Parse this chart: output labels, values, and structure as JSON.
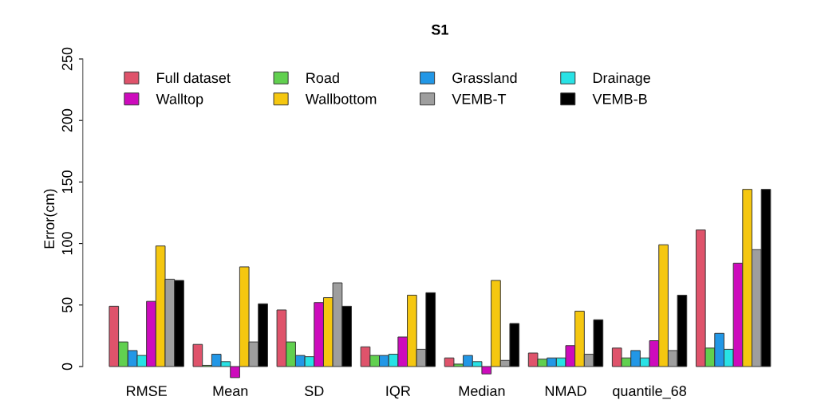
{
  "chart_data": {
    "type": "bar",
    "title": "S1",
    "ylabel": "Error(cm)",
    "categories": [
      "RMSE",
      "Mean",
      "SD",
      "IQR",
      "Median",
      "NMAD",
      "quantile_68",
      null
    ],
    "ylim": [
      -10,
      250
    ],
    "yticks": [
      0,
      50,
      100,
      150,
      200,
      250
    ],
    "grid": false,
    "legend": "top left",
    "series": [
      {
        "name": "Full dataset",
        "color": "#df536b",
        "values": [
          49,
          18,
          46,
          16,
          7,
          11,
          15,
          111
        ]
      },
      {
        "name": "Road",
        "color": "#61d04f",
        "values": [
          20,
          1,
          20,
          9,
          2,
          6,
          7,
          15
        ]
      },
      {
        "name": "Grassland",
        "color": "#2297e6",
        "values": [
          13,
          10,
          9,
          9,
          9,
          7,
          13,
          27
        ]
      },
      {
        "name": "Drainage",
        "color": "#28e2e5",
        "values": [
          9,
          4,
          8,
          10,
          4,
          7,
          7,
          14
        ]
      },
      {
        "name": "Walltop",
        "color": "#cd0bbc",
        "values": [
          53,
          -9,
          52,
          24,
          -6,
          17,
          21,
          84
        ]
      },
      {
        "name": "Wallbottom",
        "color": "#f5c710",
        "values": [
          98,
          81,
          56,
          58,
          70,
          45,
          99,
          144
        ]
      },
      {
        "name": "VEMB-T",
        "color": "#9e9e9e",
        "values": [
          71,
          20,
          68,
          14,
          5,
          10,
          13,
          95
        ]
      },
      {
        "name": "VEMB-B",
        "color": "#000000",
        "values": [
          70,
          51,
          49,
          60,
          35,
          38,
          58,
          144
        ]
      }
    ]
  }
}
